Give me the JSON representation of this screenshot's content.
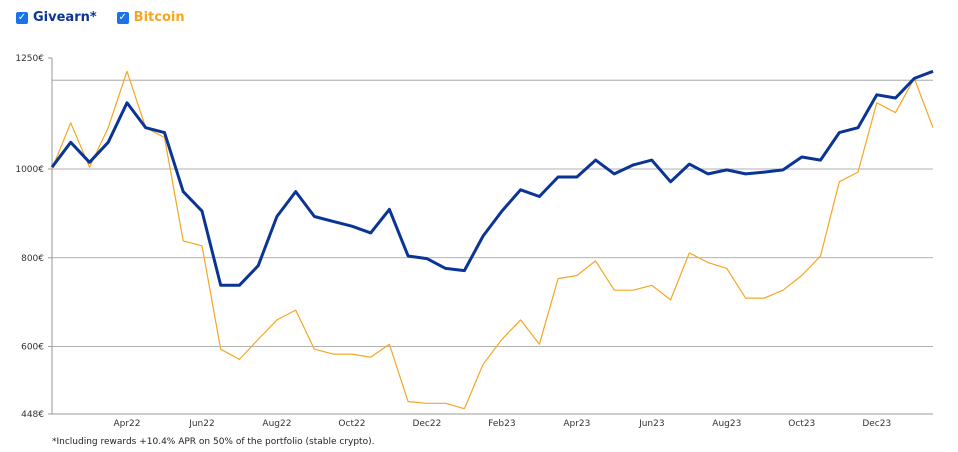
{
  "chart_data": {
    "type": "line",
    "categories": [
      null,
      null,
      null,
      null,
      "Apr22",
      null,
      null,
      null,
      "Jun22",
      null,
      null,
      null,
      "Aug22",
      null,
      null,
      null,
      "Oct22",
      null,
      null,
      null,
      "Dec22",
      null,
      null,
      null,
      "Feb23",
      null,
      null,
      null,
      "Apr23",
      null,
      null,
      null,
      "Jun23",
      null,
      null,
      null,
      "Aug23",
      null,
      null,
      null,
      "Oct23",
      null,
      null,
      null,
      "Dec23",
      null,
      null,
      null
    ],
    "series": [
      {
        "name": "Givearn*",
        "color": "#0a3595",
        "values": [
          1004,
          1060,
          1015,
          1060,
          1149,
          1093,
          1082,
          949,
          905,
          738,
          738,
          782,
          893,
          949,
          893,
          882,
          871,
          856,
          909,
          804,
          798,
          776,
          771,
          849,
          905,
          953,
          938,
          982,
          982,
          1020,
          989,
          1009,
          1020,
          971,
          1011,
          989,
          998,
          989,
          993,
          998,
          1027,
          1020,
          1082,
          1093,
          1167,
          1160,
          1204,
          1220
        ]
      },
      {
        "name": "Bitcoin",
        "color": "#f5a623",
        "values": [
          1000,
          1104,
          1004,
          1093,
          1220,
          1093,
          1071,
          838,
          827,
          594,
          571,
          616,
          660,
          682,
          594,
          583,
          583,
          576,
          605,
          476,
          472,
          472,
          460,
          560,
          616,
          660,
          605,
          753,
          760,
          793,
          727,
          727,
          738,
          705,
          811,
          789,
          776,
          709,
          709,
          727,
          760,
          804,
          971,
          993,
          1149,
          1127,
          1204,
          1093
        ]
      }
    ],
    "ylim": [
      448,
      1250
    ],
    "yticks": [
      {
        "value": 448,
        "label": "448€"
      },
      {
        "value": 600,
        "label": "600€"
      },
      {
        "value": 800,
        "label": "800€"
      },
      {
        "value": 1000,
        "label": "1000€"
      },
      {
        "value": 1250,
        "label": "1250€"
      }
    ],
    "reference_line": 1200,
    "grid": true,
    "footnote": "*Including rewards +10.4% APR on 50% of the portfolio (stable crypto)."
  }
}
